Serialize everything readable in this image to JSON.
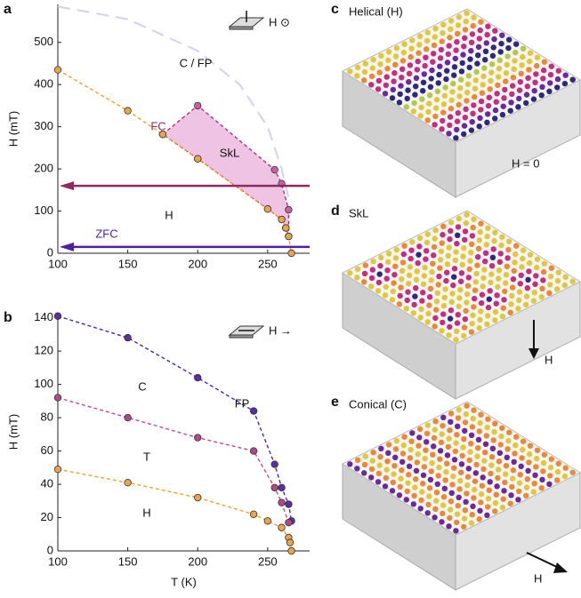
{
  "chart_data": [
    {
      "type": "line",
      "panel_label": "a",
      "y_label": "H (mT)",
      "field_label": "H ⊙",
      "xlim": [
        100,
        280
      ],
      "ylim": [
        0,
        590
      ],
      "xticks": [
        100,
        150,
        200,
        250
      ],
      "yticks": [
        0,
        100,
        200,
        300,
        400,
        500
      ],
      "series": [
        {
          "color": "#b0307f",
          "fill": "#eec3e3",
          "closed": true,
          "markers": true,
          "marker_color": "#c9609f",
          "line_style": "dashed",
          "x": [
            175,
            200,
            255,
            260,
            265,
            265,
            263,
            260,
            250,
            200,
            175
          ],
          "values": [
            282,
            350,
            198,
            165,
            103,
            40,
            60,
            80,
            105,
            224,
            282
          ]
        },
        {
          "color": "#f0a030",
          "markers": true,
          "marker_color": "#e9a54c",
          "line_style": "dashed",
          "x": [
            100,
            150,
            175,
            200,
            250,
            260,
            263,
            265,
            267
          ],
          "values": [
            435,
            338,
            282,
            224,
            105,
            80,
            60,
            40,
            0
          ]
        },
        {
          "color": "#d6d0ea",
          "markers": false,
          "line_style": "long-dashed",
          "x": [
            100,
            150,
            200,
            230,
            250,
            260,
            265
          ],
          "values": [
            585,
            555,
            480,
            400,
            300,
            200,
            130
          ]
        }
      ],
      "arrows": [
        {
          "label": "FC",
          "value": 160,
          "color": "#8e2a5e"
        },
        {
          "label": "ZFC",
          "value": 15,
          "color": "#5020a0"
        }
      ],
      "annotations": [
        "C / FP",
        "SkL",
        "H"
      ]
    },
    {
      "type": "line",
      "panel_label": "b",
      "y_label": "H (mT)",
      "x_label": "T (K)",
      "field_label": "H →",
      "xlim": [
        100,
        280
      ],
      "ylim": [
        0,
        143
      ],
      "xticks": [
        100,
        150,
        200,
        250
      ],
      "yticks": [
        0,
        20,
        40,
        60,
        80,
        100,
        120,
        140
      ],
      "series": [
        {
          "color": "#4a2a9a",
          "markers": true,
          "marker_color": "#5a2ea6",
          "line_style": "dashed",
          "x": [
            100,
            150,
            200,
            240,
            255,
            260,
            265,
            267
          ],
          "values": [
            141,
            128,
            104,
            84,
            52,
            38,
            28,
            18
          ]
        },
        {
          "color": "#c04a90",
          "markers": true,
          "marker_color": "#b04a86",
          "line_style": "dashed",
          "x": [
            100,
            150,
            200,
            240,
            255,
            260,
            265
          ],
          "values": [
            92,
            80,
            68,
            60,
            38,
            29,
            17
          ]
        },
        {
          "color": "#f0a030",
          "markers": true,
          "marker_color": "#e9a54c",
          "line_style": "dashed",
          "x": [
            100,
            150,
            200,
            240,
            250,
            260,
            265,
            266,
            267
          ],
          "values": [
            49,
            41,
            32,
            22,
            18,
            14,
            8,
            5,
            0
          ]
        }
      ],
      "annotations": [
        "FP",
        "C",
        "T",
        "H"
      ]
    }
  ],
  "panels": [
    {
      "label": "c",
      "title": "Helical (H)",
      "note": "H = 0"
    },
    {
      "label": "d",
      "title": "SkL",
      "note": "H"
    },
    {
      "label": "e",
      "title": "Conical (C)",
      "note": "H"
    }
  ]
}
